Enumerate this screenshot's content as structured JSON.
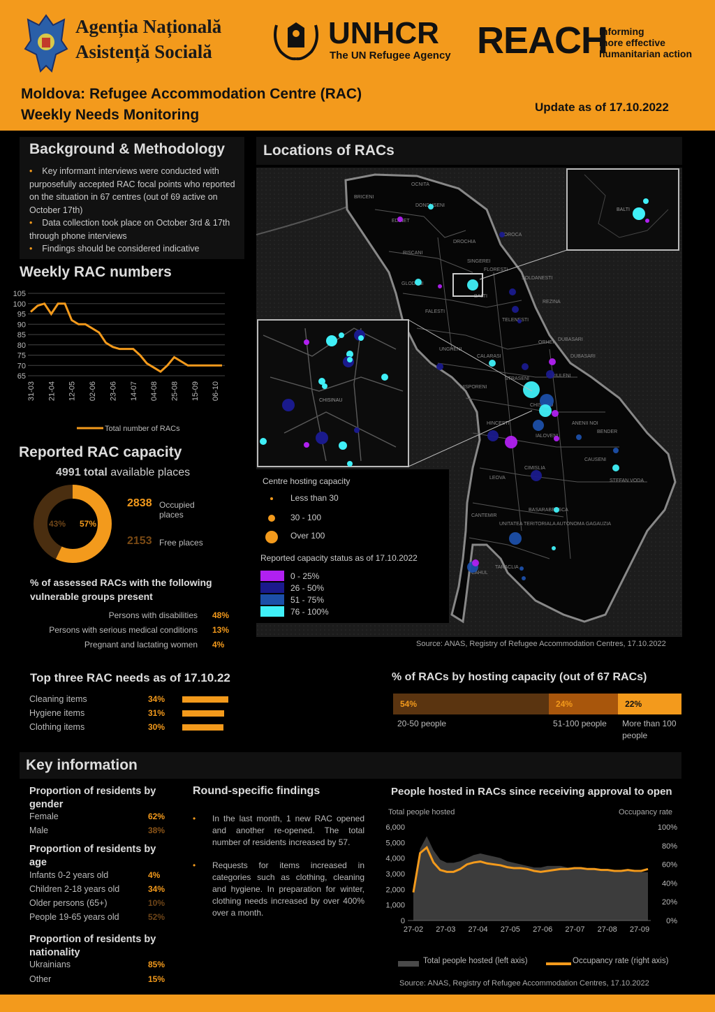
{
  "header": {
    "anas_line1": "Agenția Națională",
    "anas_line2": "Asistență Socială",
    "unhcr_name": "UNHCR",
    "unhcr_tagline": "The UN Refugee Agency",
    "reach_name": "REACH",
    "reach_tag1": "Informing",
    "reach_tag2": "more effective",
    "reach_tag3": "humanitarian action",
    "title_line1": "Moldova: Refugee Accommodation Centre (RAC)",
    "title_line2": "Weekly Needs Monitoring",
    "update": "Update as of 17.10.2022"
  },
  "background": {
    "title": "Background & Methodology",
    "bullets": [
      "Key informant interviews were conducted with purposefully accepted RAC focal points who reported on the situation in 67 centres (out of 69 active on October 17th)",
      "Data collection took place on October 3rd & 17th through phone interviews",
      "Findings should be considered indicative"
    ]
  },
  "weekly": {
    "title": "Weekly RAC numbers",
    "legend": "Total number of RACs"
  },
  "capacity": {
    "title": "Reported RAC capacity",
    "total_value": "4991 total",
    "total_rest": "available places",
    "occupied_value": "2838",
    "occupied_label": "Occupied places",
    "free_value": "2153",
    "free_label": "Free places",
    "occupied_pct": "57%",
    "free_pct": "43%",
    "occupied_fraction": 0.57
  },
  "vulnerable": {
    "title": "% of assessed RACs with the following vulnerable groups present",
    "items": [
      {
        "label": "Persons with disabilities",
        "value": "48%"
      },
      {
        "label": "Persons with serious medical conditions",
        "value": "13%"
      },
      {
        "label": "Pregnant and lactating women",
        "value": "4%"
      }
    ]
  },
  "needs": {
    "title": "Top three RAC needs as of 17.10.22",
    "items": [
      {
        "label": "Cleaning items",
        "value": "34%",
        "num": 34
      },
      {
        "label": "Hygiene items",
        "value": "31%",
        "num": 31
      },
      {
        "label": "Clothing items",
        "value": "30%",
        "num": 30
      }
    ]
  },
  "map": {
    "title": "Locations of RACs",
    "hosting_title": "Centre hosting capacity",
    "hosting": [
      "Less than 30",
      "30 - 100",
      "Over 100"
    ],
    "status_title": "Reported capacity status as of 17.10.2022",
    "status": [
      {
        "label": "0 - 25%",
        "color": "#b020f0"
      },
      {
        "label": "26 - 50%",
        "color": "#1a1a8c"
      },
      {
        "label": "51 - 75%",
        "color": "#1c4fa8"
      },
      {
        "label": "76 - 100%",
        "color": "#40f0f8"
      }
    ],
    "labels": [
      "OCNITA",
      "BRICENI",
      "DONDUSENI",
      "EDINET",
      "DROCHIA",
      "SOROCA",
      "RISCANI",
      "FLORESTI",
      "GLODENI",
      "BALTI",
      "SOLDANESTI",
      "REZINA",
      "FALESTI",
      "TELENESTI",
      "ORHEI",
      "UNGHENI",
      "CALARASI",
      "DUBASARI",
      "NISPORENI",
      "CRIULENI",
      "STRASENI",
      "ANENII NOI",
      "HINCESTI",
      "IALOVENI",
      "BENDER",
      "CAUSENI",
      "CHISINAU",
      "CIMISLIA",
      "LEOVA",
      "STEFAN VODA",
      "BASARABEASCA",
      "CANTEMIR",
      "UNITATEA TERITORIALA AUTONOMA GAGAUZIA",
      "TARACLIA",
      "CAHUL",
      "SINGEREI",
      "DUBASARI"
    ],
    "source": "Source: ANAS, Registry of Refugee Accommodation Centres, 17.10.2022"
  },
  "hosting_capacity": {
    "title": "% of RACs by hosting capacity (out of 67 RACs)",
    "segments": [
      {
        "value": "54%",
        "num": 54,
        "label": "20-50 people",
        "color": "#5a3410"
      },
      {
        "value": "24%",
        "num": 24,
        "label": "51-100 people",
        "color": "#a8560c"
      },
      {
        "value": "22%",
        "num": 22,
        "label": "More than 100 people",
        "color": "#f39a1c"
      }
    ]
  },
  "key": {
    "title": "Key information",
    "gender_title": "Proportion of residents by gender",
    "gender": [
      {
        "label": "Female",
        "value": "62%"
      },
      {
        "label": "Male",
        "value": "38%"
      }
    ],
    "age_title": "Proportion of residents by age",
    "age": [
      {
        "label": "Infants 0-2 years old",
        "value": "4%"
      },
      {
        "label": "Children 2-18 years old",
        "value": "34%"
      },
      {
        "label": "Older persons (65+)",
        "value": "10%"
      },
      {
        "label": "People 19-65 years old",
        "value": "52%"
      }
    ],
    "nat_title": "Proportion of residents by nationality",
    "nat": [
      {
        "label": "Ukrainians",
        "value": "85%"
      },
      {
        "label": "Other",
        "value": "15%"
      }
    ],
    "round_title": "Round-specific findings",
    "round": [
      "In the last month, 1 new RAC opened and another re-opened. The total number of residents increased by 57.",
      "Requests for items increased in categories such as clothing, cleaning and hygiene. In preparation for winter, clothing needs increased by over 400% over a month."
    ],
    "people_title": "People hosted in RACs since receiving approval to open",
    "left_axis_title": "Total people hosted",
    "right_axis_title": "Occupancy rate",
    "legend_left": "Total people hosted (left axis)",
    "legend_right": "Occupancy rate (right axis)",
    "source": "Source: ANAS, Registry of Refugee Accommodation Centres, 17.10.2022"
  },
  "chart_data": [
    {
      "type": "line",
      "title": "Weekly RAC numbers",
      "x": [
        "31-03",
        "07-04",
        "14-04",
        "21-04",
        "28-04",
        "05-05",
        "12-05",
        "19-05",
        "26-05",
        "02-06",
        "09-06",
        "16-06",
        "23-06",
        "30-06",
        "07-07",
        "14-07",
        "21-07",
        "28-07",
        "04-08",
        "11-08",
        "18-08",
        "25-08",
        "01-09",
        "08-09",
        "15-09",
        "22-09",
        "29-09",
        "06-10",
        "13-10"
      ],
      "tick_labels": [
        "31-03",
        "21-04",
        "12-05",
        "02-06",
        "23-06",
        "14-07",
        "04-08",
        "25-08",
        "15-09",
        "06-10"
      ],
      "series": [
        {
          "name": "Total number of RACs",
          "values": [
            96,
            99,
            100,
            95,
            100,
            100,
            92,
            90,
            90,
            88,
            86,
            81,
            79,
            78,
            78,
            78,
            75,
            71,
            69,
            67,
            70,
            74,
            72,
            70,
            70,
            70,
            70,
            70,
            70
          ]
        }
      ],
      "ylim": [
        65,
        105
      ],
      "yticks": [
        65,
        70,
        75,
        80,
        85,
        90,
        95,
        100,
        105
      ],
      "grid": true
    },
    {
      "type": "pie",
      "title": "Reported RAC capacity",
      "categories": [
        "Occupied places",
        "Free places"
      ],
      "values": [
        2838,
        2153
      ]
    },
    {
      "type": "bar",
      "title": "Top three RAC needs as of 17.10.22",
      "categories": [
        "Cleaning items",
        "Hygiene items",
        "Clothing items"
      ],
      "values": [
        34,
        31,
        30
      ]
    },
    {
      "type": "bar",
      "title": "% of RACs by hosting capacity (out of 67 RACs)",
      "categories": [
        "20-50 people",
        "51-100 people",
        "More than 100 people"
      ],
      "values": [
        54,
        24,
        22
      ]
    },
    {
      "type": "area",
      "title": "People hosted in RACs since receiving approval to open",
      "x_ticks": [
        "27-02",
        "27-03",
        "27-04",
        "27-05",
        "27-06",
        "27-07",
        "27-08",
        "27-09"
      ],
      "left_ticks": [
        "0",
        "1,000",
        "2,000",
        "3,000",
        "4,000",
        "5,000",
        "6,000"
      ],
      "right_ticks": [
        "0%",
        "20%",
        "40%",
        "60%",
        "80%",
        "100%"
      ],
      "left_ylim": [
        0,
        6000
      ],
      "right_ylim": [
        0,
        100
      ],
      "series": [
        {
          "name": "Total people hosted (left axis)",
          "values": [
            2000,
            4600,
            5400,
            4500,
            3900,
            3700,
            3700,
            3800,
            4000,
            4200,
            4300,
            4200,
            4100,
            4000,
            3800,
            3700,
            3600,
            3500,
            3400,
            3400,
            3500,
            3500,
            3500,
            3400,
            3400,
            3300,
            3300,
            3300,
            3300,
            3300,
            3200,
            3200,
            3200,
            3100,
            3100,
            3100
          ]
        },
        {
          "name": "Occupancy rate (right axis)",
          "values": [
            30,
            72,
            78,
            62,
            54,
            52,
            52,
            55,
            60,
            62,
            63,
            61,
            60,
            59,
            57,
            56,
            56,
            55,
            53,
            52,
            53,
            54,
            55,
            55,
            56,
            56,
            55,
            55,
            54,
            54,
            53,
            53,
            54,
            53,
            53,
            55
          ]
        }
      ]
    }
  ]
}
